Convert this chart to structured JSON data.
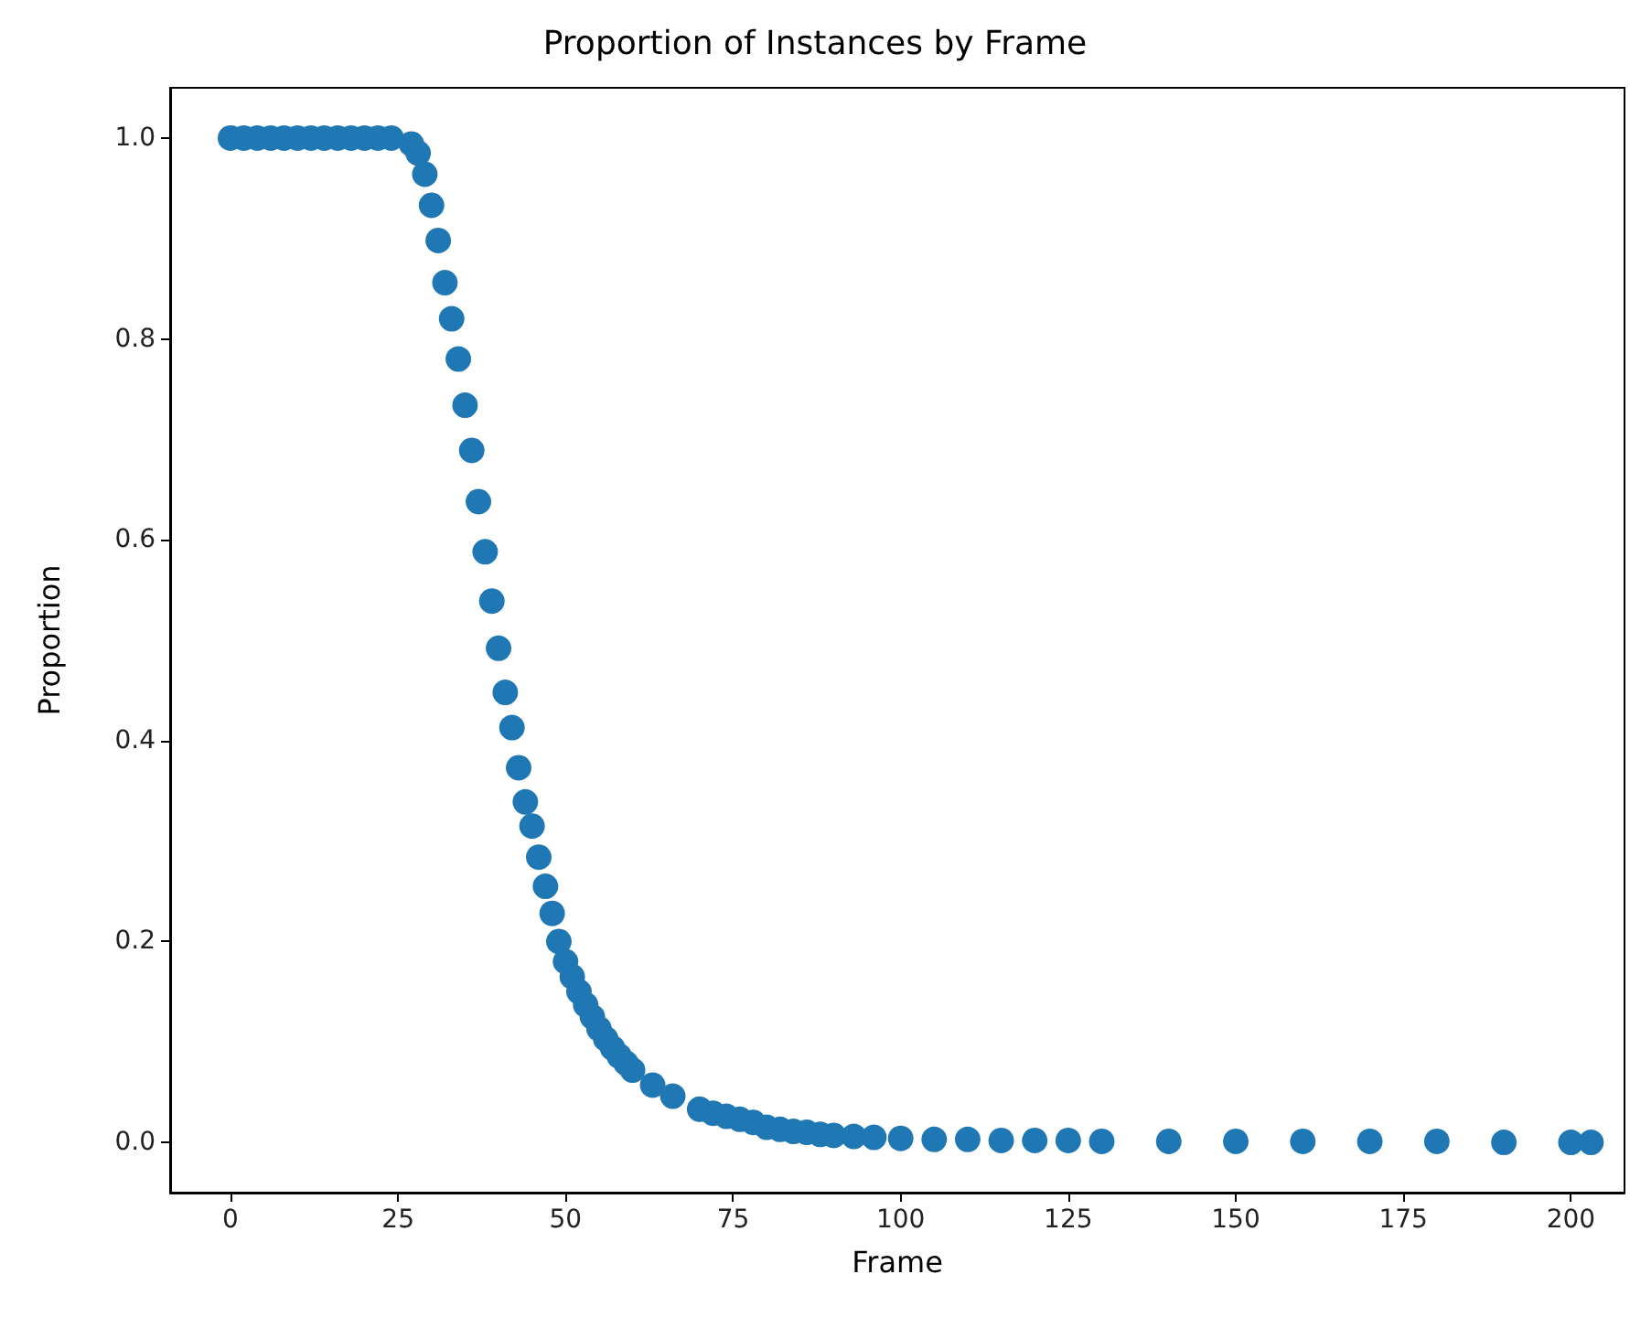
{
  "chart_data": {
    "type": "scatter",
    "title": "Proportion of Instances by Frame",
    "xlabel": "Frame",
    "ylabel": "Proportion",
    "x": [
      0,
      2,
      4,
      6,
      8,
      10,
      12,
      14,
      16,
      18,
      20,
      22,
      24,
      27,
      28,
      29,
      30,
      31,
      32,
      33,
      34,
      35,
      36,
      37,
      38,
      39,
      40,
      41,
      42,
      43,
      44,
      45,
      46,
      47,
      48,
      49,
      50,
      51,
      52,
      53,
      54,
      55,
      56,
      57,
      58,
      59,
      60,
      63,
      66,
      70,
      72,
      74,
      76,
      78,
      80,
      82,
      84,
      86,
      88,
      90,
      93,
      96,
      100,
      105,
      110,
      115,
      120,
      125,
      130,
      140,
      150,
      160,
      170,
      180,
      190,
      200,
      203
    ],
    "series": [
      {
        "color": "#1f77b4",
        "values": [
          1,
          1,
          1,
          1,
          1,
          1,
          1,
          1,
          1,
          1,
          1,
          1,
          1,
          0.994,
          0.985,
          0.964,
          0.933,
          0.898,
          0.856,
          0.82,
          0.78,
          0.734,
          0.689,
          0.638,
          0.588,
          0.539,
          0.492,
          0.448,
          0.413,
          0.373,
          0.339,
          0.315,
          0.284,
          0.255,
          0.228,
          0.2,
          0.18,
          0.165,
          0.15,
          0.137,
          0.125,
          0.113,
          0.103,
          0.094,
          0.086,
          0.079,
          0.072,
          0.057,
          0.046,
          0.033,
          0.029,
          0.026,
          0.023,
          0.02,
          0.015,
          0.013,
          0.011,
          0.01,
          0.008,
          0.007,
          0.006,
          0.005,
          0.004,
          0.003,
          0.003,
          0.002,
          0.002,
          0.002,
          0.001,
          0.001,
          0.001,
          0.001,
          0.001,
          0.001,
          0,
          0,
          0
        ]
      }
    ],
    "xlim": [
      -9,
      208
    ],
    "xticks": [
      0,
      25,
      50,
      75,
      100,
      125,
      150,
      175,
      200
    ],
    "ylim": [
      -0.05,
      1.05
    ],
    "yticks": [
      {
        "value": 0,
        "label": "0.0"
      },
      {
        "value": 0.2,
        "label": "0.2"
      },
      {
        "value": 0.4,
        "label": "0.4"
      },
      {
        "value": 0.6,
        "label": "0.6"
      },
      {
        "value": 0.8,
        "label": "0.8"
      },
      {
        "value": 1,
        "label": "1.0"
      }
    ],
    "grid": false,
    "marker": "circle"
  }
}
